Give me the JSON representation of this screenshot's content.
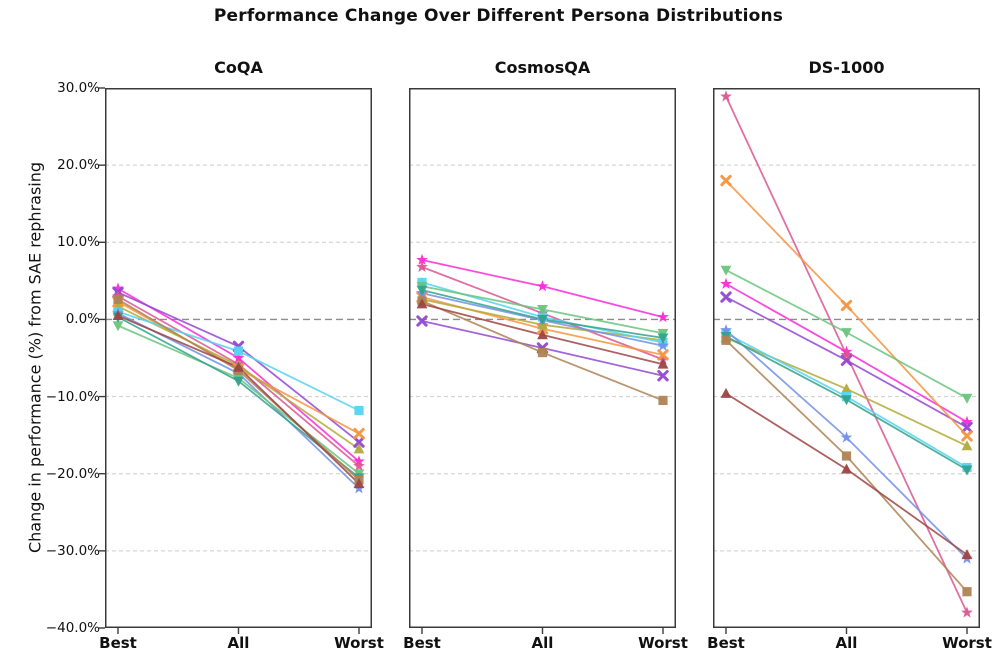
{
  "figure": {
    "suptitle": "Performance Change Over Different Persona Distributions"
  },
  "chart_data": {
    "type": "line",
    "title": "Performance Change Over Different Persona Distributions",
    "ylabel": "Change in performance (%) from SAE rephrasing",
    "xlabel": "",
    "categories": [
      "Best",
      "All",
      "Worst"
    ],
    "ylim": [
      -40,
      30
    ],
    "y_tick_labels": [
      "30.0%",
      "20.0%",
      "10.0%",
      "0.0%",
      "−10.0%",
      "−20.0%",
      "−30.0%",
      "−40.0%"
    ],
    "y_tick_values": [
      30,
      20,
      10,
      0,
      -10,
      -20,
      -30,
      -40
    ],
    "grid": {
      "horizontal": "dashed-light",
      "zero_line": "dashed-gray"
    },
    "legend_position": "none",
    "series": [
      {
        "name": "magenta-star",
        "color": "#fa2bd8",
        "marker": "star"
      },
      {
        "name": "violet-x",
        "color": "#9348d2",
        "marker": "x"
      },
      {
        "name": "crimson-star",
        "color": "#da5792",
        "marker": "star"
      },
      {
        "name": "orange-x",
        "color": "#f79440",
        "marker": "x"
      },
      {
        "name": "olive-triangle-up",
        "color": "#b2ab3a",
        "marker": "triangle-up"
      },
      {
        "name": "cyan-square",
        "color": "#55d4f0",
        "marker": "square"
      },
      {
        "name": "blue-star",
        "color": "#7290e8",
        "marker": "star"
      },
      {
        "name": "green-triangle-down",
        "color": "#69c47d",
        "marker": "triangle-down"
      },
      {
        "name": "teal-triangle-down",
        "color": "#35a18c",
        "marker": "triangle-down"
      },
      {
        "name": "brown-square",
        "color": "#af8354",
        "marker": "square"
      },
      {
        "name": "darkred-triangle-up",
        "color": "#9d4444",
        "marker": "triangle-up"
      }
    ],
    "panels": [
      {
        "title": "CoQA",
        "series_values": [
          [
            4.0,
            -5.0,
            -18.4
          ],
          [
            3.5,
            -3.5,
            -15.9
          ],
          [
            3.0,
            -5.8,
            -19.0
          ],
          [
            2.3,
            -6.4,
            -14.8
          ],
          [
            1.7,
            -6.0,
            -16.8
          ],
          [
            1.0,
            -4.1,
            -11.8
          ],
          [
            0.8,
            -7.0,
            -21.9
          ],
          [
            -0.8,
            -7.6,
            -20.0
          ],
          [
            0.3,
            -8.0,
            -20.5
          ],
          [
            2.6,
            -6.6,
            -20.8
          ],
          [
            0.5,
            -6.2,
            -21.3
          ]
        ]
      },
      {
        "title": "CosmosQA",
        "series_values": [
          [
            7.7,
            4.3,
            0.3
          ],
          [
            -0.2,
            -3.7,
            -7.3
          ],
          [
            6.8,
            0.8,
            -5.2
          ],
          [
            2.9,
            -1.2,
            -4.6
          ],
          [
            2.6,
            -0.7,
            -2.7
          ],
          [
            4.8,
            0.3,
            -3.0
          ],
          [
            3.4,
            -0.1,
            -3.4
          ],
          [
            4.3,
            1.3,
            -1.8
          ],
          [
            3.8,
            0.0,
            -2.4
          ],
          [
            2.4,
            -4.3,
            -10.5
          ],
          [
            2.0,
            -2.0,
            -5.8
          ]
        ]
      },
      {
        "title": "DS-1000",
        "series_values": [
          [
            4.6,
            -4.2,
            -13.3
          ],
          [
            2.9,
            -5.3,
            -14.0
          ],
          [
            28.9,
            -4.6,
            -38.0
          ],
          [
            18.0,
            1.8,
            -15.1
          ],
          [
            -2.4,
            -9.0,
            -16.4
          ],
          [
            -1.8,
            -10.0,
            -19.2
          ],
          [
            -1.4,
            -15.3,
            -31.0
          ],
          [
            6.4,
            -1.7,
            -10.2
          ],
          [
            -2.2,
            -10.4,
            -19.5
          ],
          [
            -2.7,
            -17.7,
            -35.3
          ],
          [
            -9.6,
            -19.4,
            -30.5
          ]
        ]
      }
    ]
  }
}
